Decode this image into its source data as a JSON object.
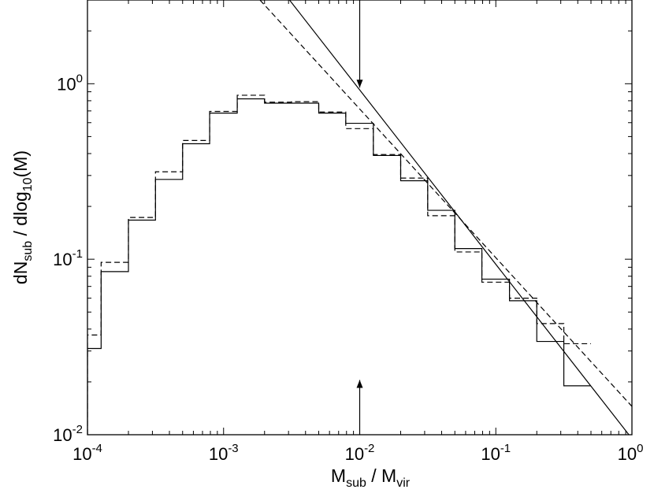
{
  "chart_data": {
    "type": "line",
    "title": "",
    "xlabel": {
      "main": "M",
      "sub1": "sub",
      "mid": " / M",
      "sub2": "vir"
    },
    "ylabel": {
      "main": "dN",
      "sub1": "sub",
      "mid": " / dlog",
      "sub2": "10",
      "end": "(M)"
    },
    "x_scale": "log",
    "y_scale": "log",
    "xlim": [
      0.0001,
      1
    ],
    "ylim": [
      0.01,
      3
    ],
    "x_ticks": [
      {
        "value": 0.0001,
        "base": "10",
        "exp": "-4"
      },
      {
        "value": 0.001,
        "base": "10",
        "exp": "-3"
      },
      {
        "value": 0.01,
        "base": "10",
        "exp": "-2"
      },
      {
        "value": 0.1,
        "base": "10",
        "exp": "-1"
      },
      {
        "value": 1,
        "base": "10",
        "exp": "0"
      }
    ],
    "y_ticks": [
      {
        "value": 0.01,
        "base": "10",
        "exp": "-2"
      },
      {
        "value": 0.1,
        "base": "10",
        "exp": "-1"
      },
      {
        "value": 1,
        "base": "10",
        "exp": "0"
      }
    ],
    "grid": false,
    "legend": "none",
    "series": [
      {
        "style": "solid-step",
        "bin_edges": [
          0.0001,
          0.000126,
          0.0002,
          0.000316,
          0.0005,
          0.00079,
          0.00126,
          0.002,
          0.00316,
          0.005,
          0.0079,
          0.0126,
          0.02,
          0.0316,
          0.05,
          0.079,
          0.126,
          0.2,
          0.316,
          0.5
        ],
        "values": [
          0.031,
          0.085,
          0.167,
          0.285,
          0.455,
          0.68,
          0.82,
          0.775,
          0.775,
          0.68,
          0.595,
          0.39,
          0.28,
          0.19,
          0.115,
          0.077,
          0.058,
          0.034,
          0.019
        ]
      },
      {
        "style": "dashed-step",
        "bin_edges": [
          0.0001,
          0.000126,
          0.0002,
          0.000316,
          0.0005,
          0.00079,
          0.00126,
          0.002,
          0.00316,
          0.005,
          0.0079,
          0.0126,
          0.02,
          0.0316,
          0.05,
          0.079,
          0.126,
          0.2,
          0.316,
          0.5
        ],
        "values": [
          0.037,
          0.096,
          0.173,
          0.315,
          0.475,
          0.695,
          0.86,
          0.785,
          0.79,
          0.69,
          0.555,
          0.395,
          0.29,
          0.177,
          0.11,
          0.074,
          0.06,
          0.043,
          0.033
        ]
      },
      {
        "style": "solid-line",
        "x": [
          0.00305,
          1
        ],
        "y": [
          3.0,
          0.0095
        ]
      },
      {
        "style": "dashed-line",
        "x": [
          0.00185,
          1
        ],
        "y": [
          3.0,
          0.0145
        ]
      }
    ],
    "annotations": [
      {
        "type": "arrow",
        "direction": "down",
        "x": 0.01,
        "y_from": 3.0,
        "y_to": 0.95
      },
      {
        "type": "arrow",
        "direction": "up",
        "x": 0.01,
        "y_from": 0.01,
        "y_to": 0.0205
      }
    ]
  }
}
